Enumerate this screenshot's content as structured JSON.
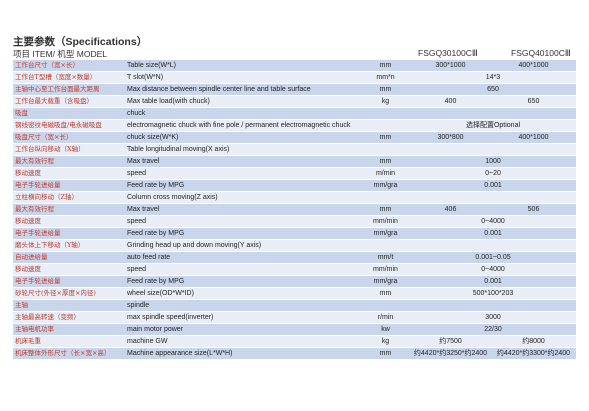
{
  "title": {
    "zh": "主要参数",
    "en": "（Specifications）"
  },
  "header": {
    "item_label": "项目 ITEM/ 机型 MODEL",
    "model_a": "FSGQ30100CⅢ",
    "model_b": "FSGQ40100CⅢ"
  },
  "rows": [
    {
      "zh": "工作台尺寸（宽×长）",
      "en": "Table size(W*L)",
      "unit": "mm",
      "a": "300*1000",
      "b": "400*1000"
    },
    {
      "zh": "工作台T型槽（宽度×数量）",
      "en": "T slot(W*N)",
      "unit": "mm*n",
      "all": "14*3"
    },
    {
      "zh": "主轴中心至工作台面最大距离",
      "en": "Max distance between spindle center line and table surface",
      "unit": "mm",
      "all": "650"
    },
    {
      "zh": "工作台最大载重（含吸盘）",
      "en": "Max table load(with chuck)",
      "unit": "kg",
      "a": "400",
      "b": "650"
    },
    {
      "zh": "吸盘",
      "en": "chuck",
      "unit": "",
      "all": ""
    },
    {
      "zh": "钢线密纹电磁吸盘/电永磁吸盘",
      "en": "electromagnetic chuck with fine pole / permanent electromagnetic chuck",
      "unit": "",
      "all": "选择配置Optional"
    },
    {
      "zh": "吸盘尺寸（宽×长）",
      "en": "chuck size(W*K)",
      "unit": "mm",
      "a": "300*800",
      "b": "400*1000"
    },
    {
      "zh": "工作台纵向移动（X轴）",
      "en": "Table longitudinal moving(X axis)",
      "unit": "",
      "all": ""
    },
    {
      "zh": "最大有效行程",
      "en": "Max travel",
      "unit": "mm",
      "all": "1000"
    },
    {
      "zh": "移动速度",
      "en": "speed",
      "unit": "m/min",
      "all": "0~20"
    },
    {
      "zh": "电子手轮进给量",
      "en": "Feed rate by MPG",
      "unit": "mm/gra",
      "all": "0.001"
    },
    {
      "zh": "立柱横向移动（Z轴）",
      "en": "Column cross moving(Z axis)",
      "unit": "",
      "all": ""
    },
    {
      "zh": "最大有效行程",
      "en": "Max travel",
      "unit": "mm",
      "a": "406",
      "b": "506"
    },
    {
      "zh": "移动速度",
      "en": "speed",
      "unit": "mm/min",
      "all": "0~4000"
    },
    {
      "zh": "电子手轮进给量",
      "en": "Feed rate by MPG",
      "unit": "mm/gra",
      "all": "0.001"
    },
    {
      "zh": "磨头体上下移动（Y轴）",
      "en": "Grinding head up and down moving(Y axis)",
      "unit": "",
      "all": ""
    },
    {
      "zh": "自动进给量",
      "en": "auto feed rate",
      "unit": "mm/t",
      "all": "0.001~0.05"
    },
    {
      "zh": "移动速度",
      "en": "speed",
      "unit": "mm/min",
      "all": "0~4000"
    },
    {
      "zh": "电子手轮进给量",
      "en": "Feed rate by MPG",
      "unit": "mm/gra",
      "all": "0.001"
    },
    {
      "zh": "砂轮尺寸(外径×厚度×内径)",
      "en": "wheel size(OD*W*ID)",
      "unit": "mm",
      "all": "500*100*203"
    },
    {
      "zh": "主轴",
      "en": "spindle",
      "unit": "",
      "all": ""
    },
    {
      "zh": "主轴最高转速（变频）",
      "en": "max spindle speed(inverter)",
      "unit": "r/min",
      "all": "3000"
    },
    {
      "zh": "主轴电机功率",
      "en": "main motor power",
      "unit": "kw",
      "all": "22/30"
    },
    {
      "zh": "机床毛重",
      "en": "machine GW",
      "unit": "kg",
      "a": "约7500",
      "b": "约8000"
    },
    {
      "zh": "机床整体外形尺寸（长×宽×高）",
      "en": "Machine appearance size(L*W*H)",
      "unit": "mm",
      "a": "约4420*约3250*约2400",
      "b": "约4420*约3300*约2400"
    }
  ]
}
